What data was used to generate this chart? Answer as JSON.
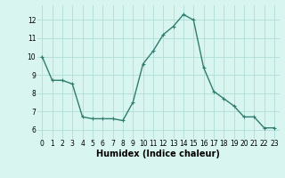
{
  "x": [
    0,
    1,
    2,
    3,
    4,
    5,
    6,
    7,
    8,
    9,
    10,
    11,
    12,
    13,
    14,
    15,
    16,
    17,
    18,
    19,
    20,
    21,
    22,
    23
  ],
  "y": [
    10.0,
    8.7,
    8.7,
    8.5,
    6.7,
    6.6,
    6.6,
    6.6,
    6.5,
    7.5,
    9.6,
    10.3,
    11.2,
    11.65,
    12.3,
    12.0,
    9.4,
    8.1,
    7.7,
    7.3,
    6.7,
    6.7,
    6.1,
    6.1
  ],
  "line_color": "#2e7d6e",
  "marker": "+",
  "marker_size": 3,
  "linewidth": 1.0,
  "bg_color": "#d8f5f0",
  "grid_color": "#b0ddd8",
  "xlabel": "Humidex (Indice chaleur)",
  "xlabel_fontsize": 7,
  "yticks": [
    6,
    7,
    8,
    9,
    10,
    11,
    12
  ],
  "xticks": [
    0,
    1,
    2,
    3,
    4,
    5,
    6,
    7,
    8,
    9,
    10,
    11,
    12,
    13,
    14,
    15,
    16,
    17,
    18,
    19,
    20,
    21,
    22,
    23
  ],
  "ylim": [
    5.5,
    12.8
  ],
  "xlim": [
    -0.5,
    23.5
  ],
  "tick_fontsize": 5.5,
  "xlabel_fontsize_bold": true
}
